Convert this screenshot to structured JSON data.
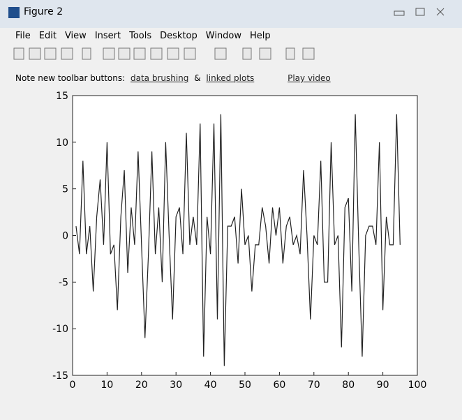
{
  "window": {
    "title": "Figure 2",
    "menu": [
      "File",
      "Edit",
      "View",
      "Insert",
      "Tools",
      "Desktop",
      "Window",
      "Help"
    ],
    "notice": {
      "text": "Note new toolbar buttons:",
      "link1": "data brushing",
      "amp": "&",
      "link2": "linked plots",
      "video": "Play video"
    }
  },
  "chart_data": {
    "type": "line",
    "x": [
      1,
      2,
      3,
      4,
      5,
      6,
      7,
      8,
      9,
      10,
      11,
      12,
      13,
      14,
      15,
      16,
      17,
      18,
      19,
      20,
      21,
      22,
      23,
      24,
      25,
      26,
      27,
      28,
      29,
      30,
      31,
      32,
      33,
      34,
      35,
      36,
      37,
      38,
      39,
      40,
      41,
      42,
      43,
      44,
      45,
      46,
      47,
      48,
      49,
      50,
      51,
      52,
      53,
      54,
      55,
      56,
      57,
      58,
      59,
      60,
      61,
      62,
      63,
      64,
      65,
      66,
      67,
      68,
      69,
      70,
      71,
      72,
      73,
      74,
      75,
      76,
      77,
      78,
      79,
      80,
      81,
      82,
      83,
      84,
      85,
      86,
      87,
      88,
      89,
      90,
      91,
      92,
      93,
      94,
      95
    ],
    "series": [
      {
        "color": "#222222",
        "values": [
          1,
          -2,
          8,
          -2,
          1,
          -6,
          2,
          6,
          -1,
          10,
          -2,
          -1,
          -8,
          2,
          7,
          -4,
          3,
          -1,
          9,
          -1,
          -11,
          -2,
          9,
          -2,
          3,
          -5,
          10,
          0,
          -9,
          2,
          3,
          -2,
          11,
          -1,
          2,
          -1,
          12,
          -13,
          2,
          -2,
          12,
          -9,
          13,
          -14,
          1,
          1,
          2,
          -3,
          5,
          -1,
          0,
          -6,
          -1,
          -1,
          3,
          1,
          -3,
          3,
          0,
          3,
          -3,
          1,
          2,
          -1,
          0,
          -2,
          7,
          0,
          -9,
          0,
          -1,
          8,
          -5,
          -5,
          10,
          -1,
          0,
          -12,
          3,
          4,
          -6,
          13,
          -1,
          -13,
          0,
          1,
          1,
          -1,
          10,
          -8,
          2,
          -1,
          -1,
          13,
          -1
        ]
      }
    ],
    "xlim": [
      0,
      100
    ],
    "ylim": [
      -15,
      15
    ],
    "xticks": [
      0,
      10,
      20,
      30,
      40,
      50,
      60,
      70,
      80,
      90,
      100
    ],
    "yticks": [
      -15,
      -10,
      -5,
      0,
      5,
      10,
      15
    ]
  }
}
